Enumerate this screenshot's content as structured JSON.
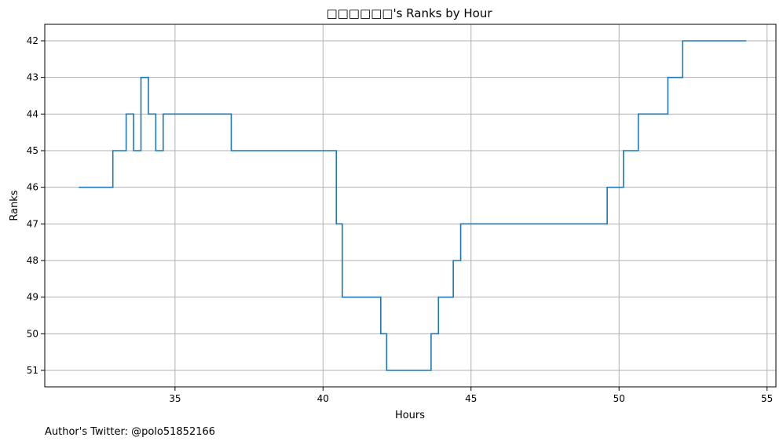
{
  "chart_data": {
    "type": "line",
    "step": true,
    "title": "□□□□□□'s Ranks by Hour",
    "xlabel": "Hours",
    "ylabel": "Ranks",
    "xlim": [
      30.6,
      55.3
    ],
    "ylim": [
      51.45,
      41.55
    ],
    "y_inverted": true,
    "xticks": [
      35,
      40,
      45,
      50,
      55
    ],
    "yticks": [
      42,
      43,
      44,
      45,
      46,
      47,
      48,
      49,
      50,
      51
    ],
    "grid": true,
    "color": "#1f77b4",
    "series": [
      {
        "x": [
          31.75,
          32.9,
          33.35,
          33.6,
          33.85,
          34.1,
          34.35,
          34.6,
          36.9,
          40.45,
          40.65,
          41.95,
          42.15,
          43.65,
          43.9,
          44.4,
          44.65,
          49.6,
          50.15,
          50.65,
          51.65,
          52.15,
          54.3
        ],
        "y": [
          46,
          45,
          44,
          45,
          43,
          44,
          45,
          44,
          45,
          47,
          49,
          50,
          51,
          50,
          49,
          48,
          47,
          46,
          45,
          44,
          43,
          42,
          42
        ]
      }
    ]
  },
  "footer": {
    "credit": "Author's Twitter: @polo51852166"
  }
}
